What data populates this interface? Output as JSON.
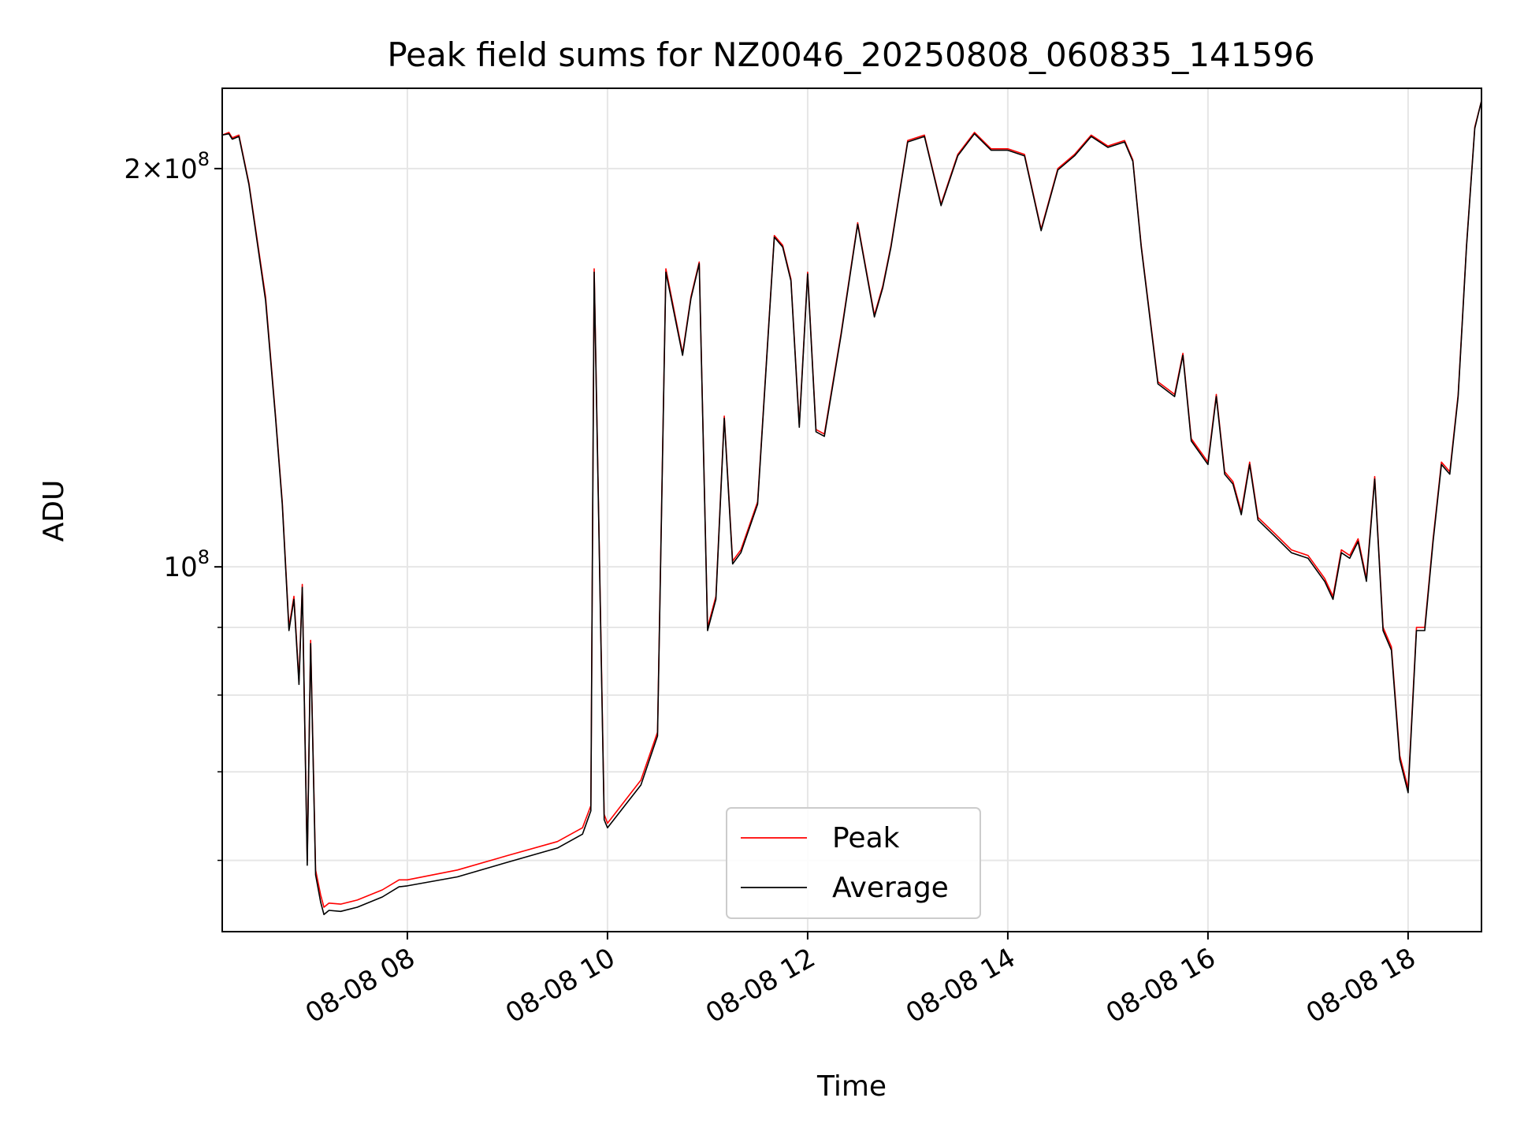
{
  "chart_data": {
    "type": "line",
    "title": "Peak field sums for NZ0046_20250808_060835_141596",
    "xlabel": "Time",
    "ylabel": "ADU",
    "y_scale": "log",
    "ylim": [
      53000000,
      230000000
    ],
    "xlim": [
      "2025-08-08 06:09",
      "2025-08-08 18:44"
    ],
    "x_ticks": [
      {
        "t": "2025-08-08 08:00",
        "label": "08-08 08"
      },
      {
        "t": "2025-08-08 10:00",
        "label": "08-08 10"
      },
      {
        "t": "2025-08-08 12:00",
        "label": "08-08 12"
      },
      {
        "t": "2025-08-08 14:00",
        "label": "08-08 14"
      },
      {
        "t": "2025-08-08 16:00",
        "label": "08-08 16"
      },
      {
        "t": "2025-08-08 18:00",
        "label": "08-08 18"
      }
    ],
    "y_major_ticks": [
      {
        "value": 100000000,
        "base": "10",
        "exp": "8",
        "mantissa": ""
      },
      {
        "value": 200000000,
        "base": "10",
        "exp": "8",
        "mantissa": "2×"
      }
    ],
    "y_minor_ticks": [
      60000000,
      70000000,
      80000000,
      90000000
    ],
    "grid": true,
    "legend_position": "lower-center",
    "series": [
      {
        "name": "Peak",
        "color": "#ff0000",
        "x": [
          "2025-08-08 06:09",
          "2025-08-08 06:13",
          "2025-08-08 06:15",
          "2025-08-08 06:19",
          "2025-08-08 06:25",
          "2025-08-08 06:35",
          "2025-08-08 06:41",
          "2025-08-08 06:45",
          "2025-08-08 06:49",
          "2025-08-08 06:52",
          "2025-08-08 06:55",
          "2025-08-08 06:57",
          "2025-08-08 07:00",
          "2025-08-08 07:02",
          "2025-08-08 07:05",
          "2025-08-08 07:08",
          "2025-08-08 07:10",
          "2025-08-08 07:13",
          "2025-08-08 07:20",
          "2025-08-08 07:30",
          "2025-08-08 07:45",
          "2025-08-08 07:55",
          "2025-08-08 08:00",
          "2025-08-08 08:30",
          "2025-08-08 09:00",
          "2025-08-08 09:30",
          "2025-08-08 09:45",
          "2025-08-08 09:50",
          "2025-08-08 09:52",
          "2025-08-08 09:58",
          "2025-08-08 10:00",
          "2025-08-08 10:20",
          "2025-08-08 10:30",
          "2025-08-08 10:35",
          "2025-08-08 10:45",
          "2025-08-08 10:50",
          "2025-08-08 10:55",
          "2025-08-08 11:00",
          "2025-08-08 11:05",
          "2025-08-08 11:10",
          "2025-08-08 11:15",
          "2025-08-08 11:20",
          "2025-08-08 11:30",
          "2025-08-08 11:40",
          "2025-08-08 11:45",
          "2025-08-08 11:50",
          "2025-08-08 11:55",
          "2025-08-08 12:00",
          "2025-08-08 12:05",
          "2025-08-08 12:10",
          "2025-08-08 12:20",
          "2025-08-08 12:30",
          "2025-08-08 12:40",
          "2025-08-08 12:45",
          "2025-08-08 12:50",
          "2025-08-08 13:00",
          "2025-08-08 13:10",
          "2025-08-08 13:20",
          "2025-08-08 13:30",
          "2025-08-08 13:40",
          "2025-08-08 13:50",
          "2025-08-08 14:00",
          "2025-08-08 14:10",
          "2025-08-08 14:20",
          "2025-08-08 14:30",
          "2025-08-08 14:40",
          "2025-08-08 14:50",
          "2025-08-08 15:00",
          "2025-08-08 15:10",
          "2025-08-08 15:15",
          "2025-08-08 15:20",
          "2025-08-08 15:30",
          "2025-08-08 15:40",
          "2025-08-08 15:45",
          "2025-08-08 15:50",
          "2025-08-08 16:00",
          "2025-08-08 16:05",
          "2025-08-08 16:10",
          "2025-08-08 16:15",
          "2025-08-08 16:20",
          "2025-08-08 16:25",
          "2025-08-08 16:30",
          "2025-08-08 16:40",
          "2025-08-08 16:50",
          "2025-08-08 17:00",
          "2025-08-08 17:10",
          "2025-08-08 17:15",
          "2025-08-08 17:20",
          "2025-08-08 17:25",
          "2025-08-08 17:30",
          "2025-08-08 17:35",
          "2025-08-08 17:40",
          "2025-08-08 17:45",
          "2025-08-08 17:50",
          "2025-08-08 17:55",
          "2025-08-08 18:00",
          "2025-08-08 18:05",
          "2025-08-08 18:10",
          "2025-08-08 18:15",
          "2025-08-08 18:20",
          "2025-08-08 18:25",
          "2025-08-08 18:30",
          "2025-08-08 18:35",
          "2025-08-08 18:40",
          "2025-08-08 18:44"
        ],
        "values": [
          212000000,
          213000000,
          211000000,
          212000000,
          195000000,
          160000000,
          130000000,
          112000000,
          90000000,
          95000000,
          82000000,
          97000000,
          60000000,
          88000000,
          59000000,
          56500000,
          55300000,
          55700000,
          55600000,
          56000000,
          57000000,
          58000000,
          58000000,
          59000000,
          60500000,
          62000000,
          63500000,
          66000000,
          168000000,
          65000000,
          64000000,
          69000000,
          75000000,
          168000000,
          145000000,
          160000000,
          170000000,
          90000000,
          95000000,
          130000000,
          101000000,
          103000000,
          112000000,
          178000000,
          175000000,
          165000000,
          128000000,
          167000000,
          127000000,
          126000000,
          150000000,
          182000000,
          155000000,
          163000000,
          175000000,
          210000000,
          212000000,
          188000000,
          205000000,
          213000000,
          207000000,
          207000000,
          205000000,
          180000000,
          200000000,
          205000000,
          212000000,
          208000000,
          210000000,
          203000000,
          175000000,
          138000000,
          135000000,
          145000000,
          125000000,
          120000000,
          135000000,
          118000000,
          116000000,
          110000000,
          120000000,
          109000000,
          106000000,
          103000000,
          102000000,
          98000000,
          95000000,
          103000000,
          102000000,
          105000000,
          98000000,
          117000000,
          90000000,
          87000000,
          72000000,
          68000000,
          90000000,
          90000000,
          105000000,
          120000000,
          118000000,
          135000000,
          175000000,
          215000000,
          225000000
        ]
      },
      {
        "name": "Average",
        "color": "#000000",
        "x": [
          "2025-08-08 06:09",
          "2025-08-08 06:13",
          "2025-08-08 06:15",
          "2025-08-08 06:19",
          "2025-08-08 06:25",
          "2025-08-08 06:35",
          "2025-08-08 06:41",
          "2025-08-08 06:45",
          "2025-08-08 06:49",
          "2025-08-08 06:52",
          "2025-08-08 06:55",
          "2025-08-08 06:57",
          "2025-08-08 07:00",
          "2025-08-08 07:02",
          "2025-08-08 07:05",
          "2025-08-08 07:08",
          "2025-08-08 07:10",
          "2025-08-08 07:13",
          "2025-08-08 07:20",
          "2025-08-08 07:30",
          "2025-08-08 07:45",
          "2025-08-08 07:55",
          "2025-08-08 08:00",
          "2025-08-08 08:30",
          "2025-08-08 09:00",
          "2025-08-08 09:30",
          "2025-08-08 09:45",
          "2025-08-08 09:50",
          "2025-08-08 09:52",
          "2025-08-08 09:58",
          "2025-08-08 10:00",
          "2025-08-08 10:20",
          "2025-08-08 10:30",
          "2025-08-08 10:35",
          "2025-08-08 10:45",
          "2025-08-08 10:50",
          "2025-08-08 10:55",
          "2025-08-08 11:00",
          "2025-08-08 11:05",
          "2025-08-08 11:10",
          "2025-08-08 11:15",
          "2025-08-08 11:20",
          "2025-08-08 11:30",
          "2025-08-08 11:40",
          "2025-08-08 11:45",
          "2025-08-08 11:50",
          "2025-08-08 11:55",
          "2025-08-08 12:00",
          "2025-08-08 12:05",
          "2025-08-08 12:10",
          "2025-08-08 12:20",
          "2025-08-08 12:30",
          "2025-08-08 12:40",
          "2025-08-08 12:45",
          "2025-08-08 12:50",
          "2025-08-08 13:00",
          "2025-08-08 13:10",
          "2025-08-08 13:20",
          "2025-08-08 13:30",
          "2025-08-08 13:40",
          "2025-08-08 13:50",
          "2025-08-08 14:00",
          "2025-08-08 14:10",
          "2025-08-08 14:20",
          "2025-08-08 14:30",
          "2025-08-08 14:40",
          "2025-08-08 14:50",
          "2025-08-08 15:00",
          "2025-08-08 15:10",
          "2025-08-08 15:15",
          "2025-08-08 15:20",
          "2025-08-08 15:30",
          "2025-08-08 15:40",
          "2025-08-08 15:45",
          "2025-08-08 15:50",
          "2025-08-08 16:00",
          "2025-08-08 16:05",
          "2025-08-08 16:10",
          "2025-08-08 16:15",
          "2025-08-08 16:20",
          "2025-08-08 16:25",
          "2025-08-08 16:30",
          "2025-08-08 16:40",
          "2025-08-08 16:50",
          "2025-08-08 17:00",
          "2025-08-08 17:10",
          "2025-08-08 17:15",
          "2025-08-08 17:20",
          "2025-08-08 17:25",
          "2025-08-08 17:30",
          "2025-08-08 17:35",
          "2025-08-08 17:40",
          "2025-08-08 17:45",
          "2025-08-08 17:50",
          "2025-08-08 17:55",
          "2025-08-08 18:00",
          "2025-08-08 18:05",
          "2025-08-08 18:10",
          "2025-08-08 18:15",
          "2025-08-08 18:20",
          "2025-08-08 18:25",
          "2025-08-08 18:30",
          "2025-08-08 18:35",
          "2025-08-08 18:40",
          "2025-08-08 18:44"
        ],
        "values": [
          212000000,
          212500000,
          210500000,
          211500000,
          194500000,
          159000000,
          129500000,
          111500000,
          89500000,
          94500000,
          81500000,
          96500000,
          59500000,
          87500000,
          58500000,
          55800000,
          54600000,
          55000000,
          54900000,
          55300000,
          56300000,
          57300000,
          57400000,
          58300000,
          59800000,
          61300000,
          62800000,
          65400000,
          167000000,
          64400000,
          63500000,
          68400000,
          74500000,
          167000000,
          144500000,
          159500000,
          169500000,
          89500000,
          94500000,
          129500000,
          100500000,
          102500000,
          111500000,
          177500000,
          174500000,
          164500000,
          127500000,
          166500000,
          126500000,
          125500000,
          149500000,
          181500000,
          154500000,
          162500000,
          174500000,
          209500000,
          211500000,
          187500000,
          204500000,
          212500000,
          206500000,
          206500000,
          204500000,
          179500000,
          199500000,
          204500000,
          211500000,
          207500000,
          209500000,
          202500000,
          174500000,
          137500000,
          134500000,
          144500000,
          124500000,
          119500000,
          134500000,
          117500000,
          115500000,
          109500000,
          119500000,
          108500000,
          105500000,
          102500000,
          101500000,
          97500000,
          94500000,
          102500000,
          101500000,
          104500000,
          97500000,
          116500000,
          89500000,
          86500000,
          71500000,
          67500000,
          89500000,
          89500000,
          104500000,
          119500000,
          117500000,
          134500000,
          174500000,
          214500000,
          225000000
        ]
      }
    ]
  }
}
